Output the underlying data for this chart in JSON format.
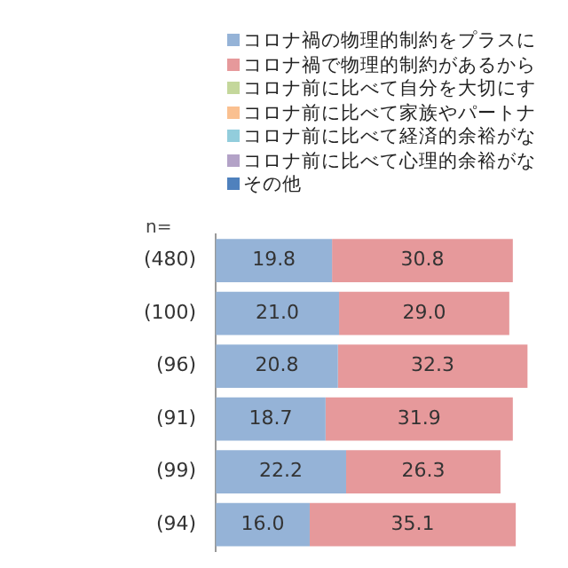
{
  "chart_data": {
    "type": "bar",
    "orientation": "horizontal",
    "stacked": true,
    "legend": "top right",
    "grid": false,
    "categories": [
      "(480)",
      "(100)",
      "(96)",
      "(91)",
      "(99)",
      "(94)"
    ],
    "tick_labels": "y",
    "annotations": [
      "n="
    ],
    "series": [
      {
        "name": "コロナ禍の物理的制約をプラスに",
        "color": "#95b3d7",
        "values": [
          19.8,
          21.0,
          20.8,
          18.7,
          22.2,
          16.0
        ],
        "value_labels": [
          "19.8",
          "21.0",
          "20.8",
          "18.7",
          "22.2",
          "16.0"
        ]
      },
      {
        "name": "コロナ禍で物理的制約があるから",
        "color": "#e6999b",
        "values": [
          30.8,
          29.0,
          32.3,
          31.9,
          26.3,
          35.1
        ],
        "value_labels": [
          "30.8",
          "29.0",
          "32.3",
          "31.9",
          "26.3",
          "35.1"
        ]
      },
      {
        "name": "コロナ前に比べて自分を大切にす",
        "color": "#c4d79b",
        "values": [
          null,
          null,
          null,
          null,
          null,
          null
        ]
      },
      {
        "name": "コロナ前に比べて家族やパートナ",
        "color": "#fac090",
        "values": [
          null,
          null,
          null,
          null,
          null,
          null
        ]
      },
      {
        "name": "コロナ前に比べて経済的余裕がな",
        "color": "#92cddc",
        "values": [
          null,
          null,
          null,
          null,
          null,
          null
        ]
      },
      {
        "name": "コロナ前に比べて心理的余裕がな",
        "color": "#b3a2c7",
        "values": [
          null,
          null,
          null,
          null,
          null,
          null
        ]
      },
      {
        "name": "その他",
        "color": "#4f81bd",
        "values": [
          null,
          null,
          null,
          null,
          null,
          null
        ]
      }
    ]
  }
}
